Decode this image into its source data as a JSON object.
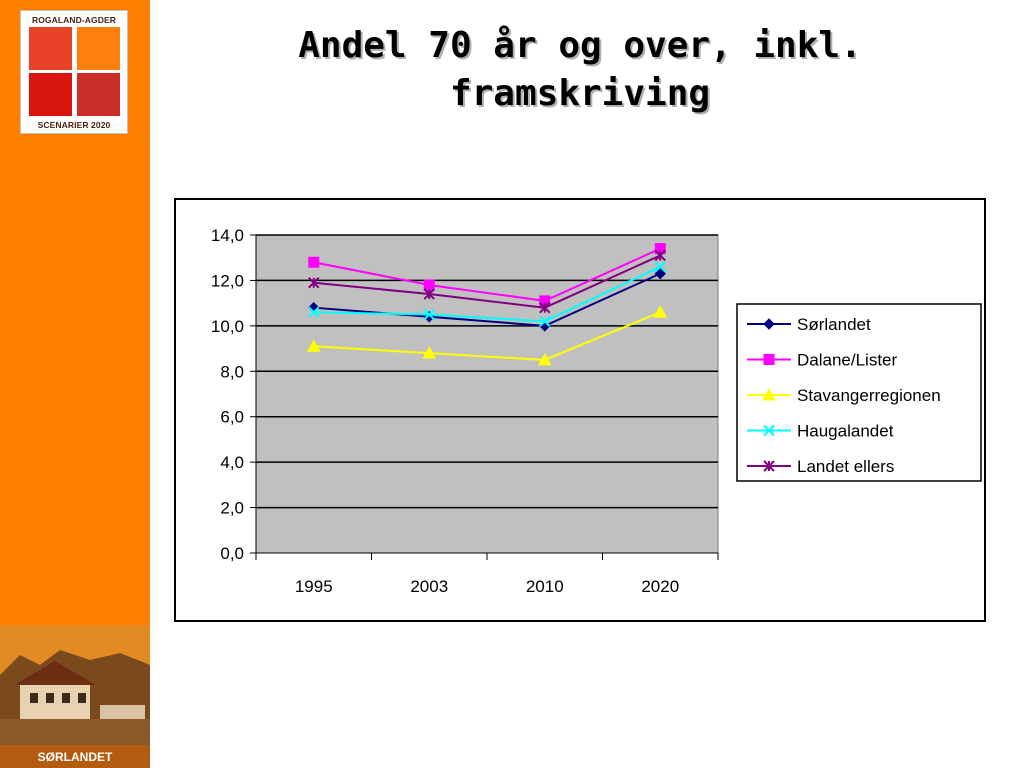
{
  "logo": {
    "top_text": "ROGALAND-AGDER",
    "bottom_text": "SCENARIER 2020"
  },
  "sidebar": {
    "region_label": "SØRLANDET"
  },
  "slide": {
    "title_line1": "Andel 70 år og over, inkl.",
    "title_line2": "framskriving"
  },
  "colors": {
    "sidebar": "#ff8000",
    "plot_area": "#c0c0c0"
  },
  "chart_data": {
    "type": "line",
    "categories": [
      "1995",
      "2003",
      "2010",
      "2020"
    ],
    "ylim": [
      0,
      14
    ],
    "yticks": [
      "0,0",
      "2,0",
      "4,0",
      "6,0",
      "8,0",
      "10,0",
      "12,0",
      "14,0"
    ],
    "grid": true,
    "legend_position": "right",
    "series": [
      {
        "name": "Sørlandet",
        "values": [
          10.8,
          10.4,
          10.0,
          12.3
        ],
        "color": "#000080",
        "marker": "diamond"
      },
      {
        "name": "Dalane/Lister",
        "values": [
          12.8,
          11.8,
          11.1,
          13.4
        ],
        "color": "#ff00ff",
        "marker": "square"
      },
      {
        "name": "Stavangerregionen",
        "values": [
          9.1,
          8.8,
          8.5,
          10.6
        ],
        "color": "#ffff00",
        "marker": "triangle"
      },
      {
        "name": "Haugalandet",
        "values": [
          10.6,
          10.5,
          10.2,
          12.6
        ],
        "color": "#00ffff",
        "marker": "x"
      },
      {
        "name": "Landet ellers",
        "values": [
          11.9,
          11.4,
          10.8,
          13.1
        ],
        "color": "#800080",
        "marker": "star"
      }
    ]
  }
}
